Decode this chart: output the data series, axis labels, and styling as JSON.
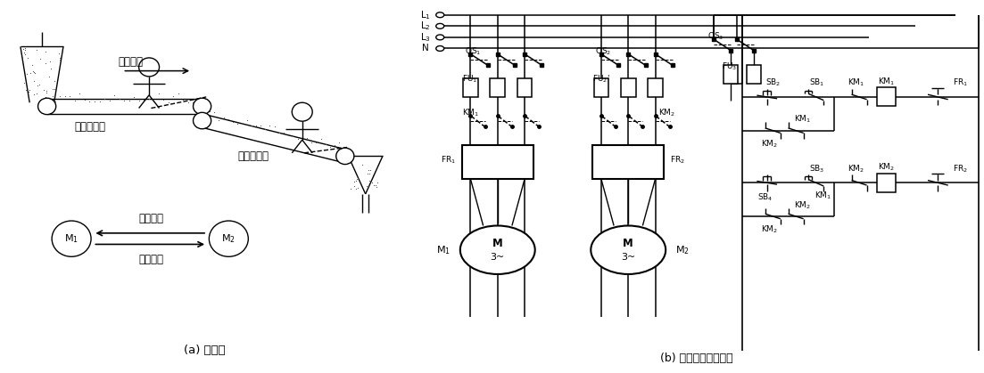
{
  "fig_width": 11.03,
  "fig_height": 4.19,
  "dpi": 100,
  "bg_color": "#ffffff",
  "lc": "#000000",
  "title_a": "(a) 示意图",
  "title_b": "(b) 顺序联锁控制电路",
  "label_yunliao": "运料方向",
  "label_belt2": "第二条皮带",
  "label_belt1": "第一条皮带",
  "label_start": "启动顺序",
  "label_stop": "停止顺序"
}
